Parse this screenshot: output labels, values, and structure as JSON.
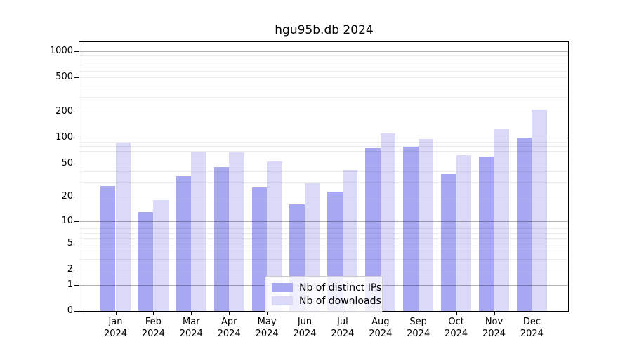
{
  "title": "hgu95b.db 2024",
  "chart_data": {
    "type": "bar",
    "title": "hgu95b.db 2024",
    "y_scale": "log1p",
    "ylim": [
      0,
      1280
    ],
    "y_ticks": [
      0,
      1,
      2,
      5,
      10,
      20,
      50,
      100,
      200,
      500,
      1000
    ],
    "grid": {
      "horizontal": true,
      "minor_steps": [
        2,
        3,
        4,
        5,
        6,
        7,
        8,
        9
      ],
      "major_powers": [
        1,
        10,
        100,
        1000
      ]
    },
    "legend_position": "lower center",
    "categories": [
      {
        "month": "Jan",
        "year": "2024"
      },
      {
        "month": "Feb",
        "year": "2024"
      },
      {
        "month": "Mar",
        "year": "2024"
      },
      {
        "month": "Apr",
        "year": "2024"
      },
      {
        "month": "May",
        "year": "2024"
      },
      {
        "month": "Jun",
        "year": "2024"
      },
      {
        "month": "Jul",
        "year": "2024"
      },
      {
        "month": "Aug",
        "year": "2024"
      },
      {
        "month": "Sep",
        "year": "2024"
      },
      {
        "month": "Oct",
        "year": "2024"
      },
      {
        "month": "Nov",
        "year": "2024"
      },
      {
        "month": "Dec",
        "year": "2024"
      }
    ],
    "series": [
      {
        "name": "Nb of distinct IPs",
        "color": "#a7a7f2",
        "values": [
          27,
          13,
          35,
          45,
          26,
          16,
          23,
          76,
          78,
          37,
          60,
          100
        ]
      },
      {
        "name": "Nb of downloads",
        "color": "#dadaf8",
        "values": [
          87,
          18,
          68,
          67,
          53,
          29,
          42,
          112,
          97,
          62,
          125,
          214
        ]
      }
    ]
  }
}
